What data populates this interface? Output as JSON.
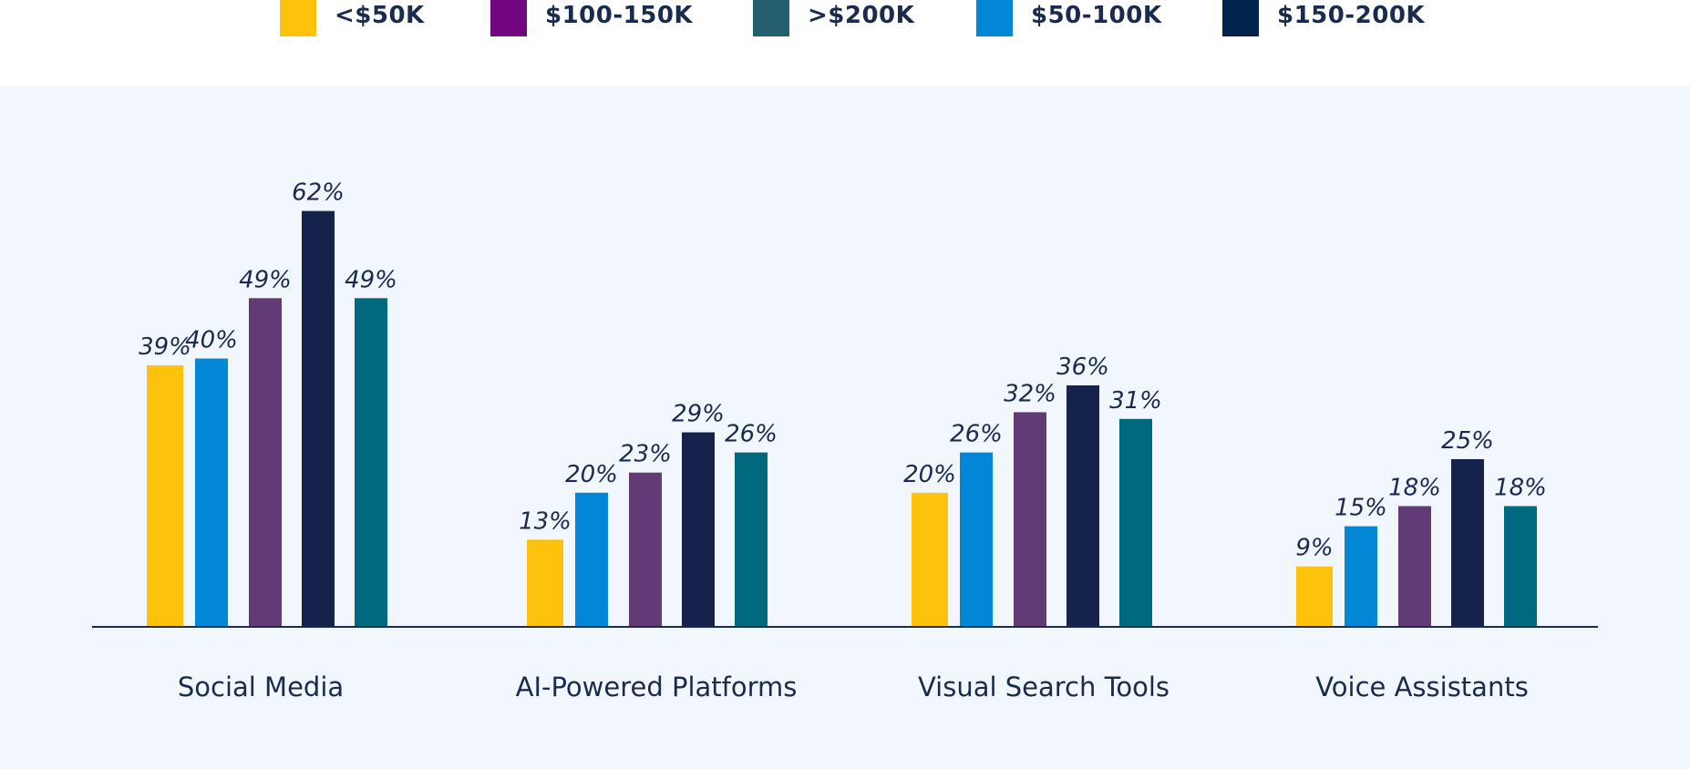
{
  "chart_data": {
    "type": "bar",
    "title": "",
    "xlabel": "",
    "ylabel": "",
    "legend_position": "top",
    "grid": false,
    "ylim": [
      0,
      70
    ],
    "categories": [
      "Social Media",
      "AI-Powered Platforms",
      "Visual Search Tools",
      "Voice Assistants"
    ],
    "legend": [
      {
        "label": "<$50K",
        "color": "#fdc20b"
      },
      {
        "label": "$100-150K",
        "color": "#720680"
      },
      {
        "label": ">$200K",
        "color": "#22606f"
      },
      {
        "label": "$50-100K",
        "color": "#0287d6"
      },
      {
        "label": "$150-200K",
        "color": "#00244e"
      }
    ],
    "series": [
      {
        "name": "<$50K",
        "color": "#fdc20b",
        "values": [
          39,
          13,
          20,
          9
        ],
        "labels": [
          "39%",
          "13%",
          "20%",
          "9%"
        ]
      },
      {
        "name": "$50-100K",
        "color": "#0287d6",
        "values": [
          40,
          20,
          26,
          15
        ],
        "labels": [
          "40%",
          "20%",
          "26%",
          "15%"
        ]
      },
      {
        "name": "$100-150K",
        "color": "#613b74",
        "values": [
          49,
          23,
          32,
          18
        ],
        "labels": [
          "49%",
          "23%",
          "32%",
          "18%"
        ]
      },
      {
        "name": "$150-200K",
        "color": "#15224a",
        "values": [
          62,
          29,
          36,
          25
        ],
        "labels": [
          "62%",
          "29%",
          "36%",
          "25%"
        ]
      },
      {
        "name": ">$200K",
        "color": "#00697f",
        "values": [
          49,
          26,
          31,
          18
        ],
        "labels": [
          "49%",
          "26%",
          "31%",
          "18%"
        ]
      }
    ]
  }
}
